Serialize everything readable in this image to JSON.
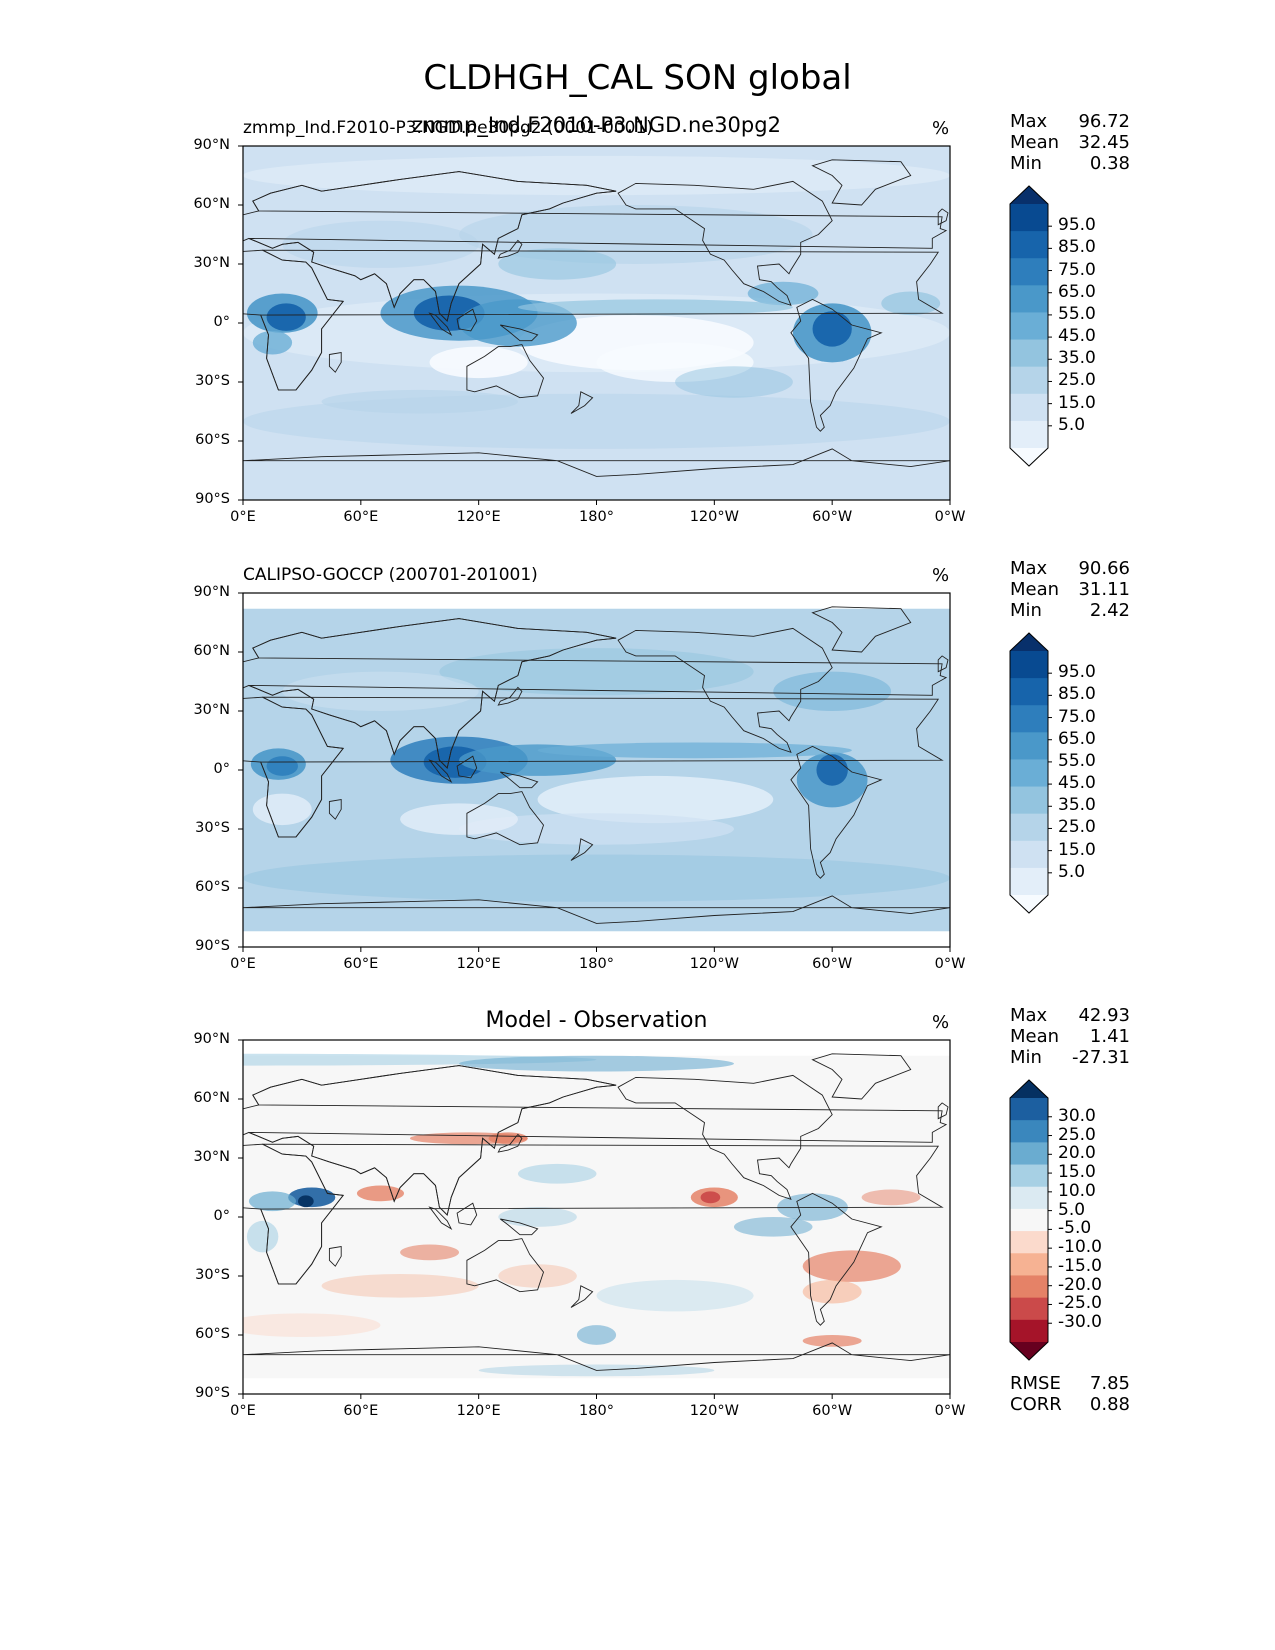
{
  "title": "CLDHGH_CAL SON global",
  "units": "%",
  "lat_ticks": [
    "90°N",
    "60°N",
    "30°N",
    "0°",
    "30°S",
    "60°S",
    "90°S"
  ],
  "lon_ticks": [
    "0°E",
    "60°E",
    "120°E",
    "180°",
    "120°W",
    "60°W",
    "0°W"
  ],
  "colors": {
    "blues": [
      "#f7fbff",
      "#e3eef9",
      "#cfe1f2",
      "#b5d4e9",
      "#93c4df",
      "#6aaed6",
      "#4a98c9",
      "#2e7ebc",
      "#1764ab",
      "#084a91",
      "#08306b"
    ],
    "diverging": [
      "#67001f",
      "#a51429",
      "#cb4a4a",
      "#e58267",
      "#f6b293",
      "#fbdacc",
      "#f7f7f7",
      "#dbeaf2",
      "#a7d0e4",
      "#6aacd0",
      "#3a87bd",
      "#1c5fa0",
      "#053061"
    ]
  },
  "panels": [
    {
      "label_left": "zmmp_Ind.F2010-P3.NGD.ne30pg2 (0001-0001)",
      "label_center": "zmmp_Ind.F2010-P3.NGD.ne30pg2",
      "stats": [
        {
          "name": "Max",
          "value": "96.72"
        },
        {
          "name": "Mean",
          "value": "32.45"
        },
        {
          "name": "Min",
          "value": "0.38"
        }
      ],
      "colorbar_labels": [
        "95.0",
        "85.0",
        "75.0",
        "65.0",
        "55.0",
        "45.0",
        "35.0",
        "25.0",
        "15.0",
        "5.0"
      ]
    },
    {
      "label_left": "CALIPSO-GOCCP (200701-201001)",
      "label_center": "",
      "stats": [
        {
          "name": "Max",
          "value": "90.66"
        },
        {
          "name": "Mean",
          "value": "31.11"
        },
        {
          "name": "Min",
          "value": "2.42"
        }
      ],
      "colorbar_labels": [
        "95.0",
        "85.0",
        "75.0",
        "65.0",
        "55.0",
        "45.0",
        "35.0",
        "25.0",
        "15.0",
        "5.0"
      ]
    },
    {
      "label_left": "",
      "label_center": "Model - Observation",
      "stats": [
        {
          "name": "Max",
          "value": "42.93"
        },
        {
          "name": "Mean",
          "value": "1.41"
        },
        {
          "name": "Min",
          "value": "-27.31"
        }
      ],
      "colorbar_labels": [
        "30.0",
        "25.0",
        "20.0",
        "15.0",
        "10.0",
        "5.0",
        "-5.0",
        "-10.0",
        "-15.0",
        "-20.0",
        "-25.0",
        "-30.0"
      ],
      "extra_stats": [
        {
          "name": "RMSE",
          "value": "7.85"
        },
        {
          "name": "CORR",
          "value": "0.88"
        }
      ]
    }
  ]
}
